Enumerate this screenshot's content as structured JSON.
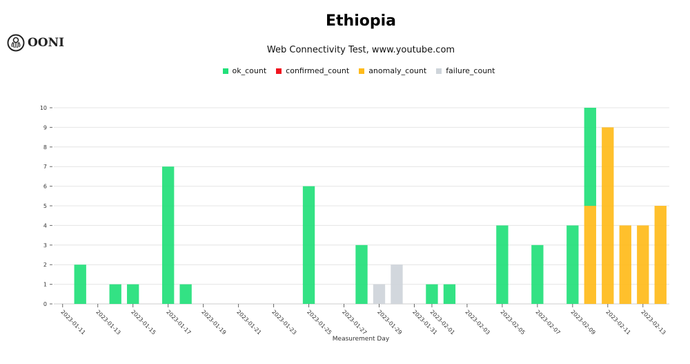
{
  "logo_text": "OONI",
  "chart_data": {
    "type": "bar",
    "stacked": true,
    "title": "Ethiopia",
    "subtitle": "Web Connectivity Test, www.youtube.com",
    "xlabel": "Measurement Day",
    "ylabel": "",
    "ylim": [
      0,
      10
    ],
    "yticks": [
      0,
      1,
      2,
      3,
      4,
      5,
      6,
      7,
      8,
      9,
      10
    ],
    "grid": true,
    "legend_placement": "top",
    "x_range": [
      "2023-01-11",
      "2023-02-14"
    ],
    "xticks": [
      "2023-01-11",
      "2023-01-13",
      "2023-01-15",
      "2023-01-17",
      "2023-01-19",
      "2023-01-21",
      "2023-01-23",
      "2023-01-25",
      "2023-01-27",
      "2023-01-29",
      "2023-01-31",
      "2023-02-01",
      "2023-02-03",
      "2023-02-05",
      "2023-02-07",
      "2023-02-09",
      "2023-02-11",
      "2023-02-13"
    ],
    "series": [
      {
        "name": "ok_count",
        "color": "#22e07a",
        "points": [
          [
            "2023-01-12",
            2
          ],
          [
            "2023-01-14",
            1
          ],
          [
            "2023-01-15",
            1
          ],
          [
            "2023-01-17",
            7
          ],
          [
            "2023-01-18",
            1
          ],
          [
            "2023-01-25",
            6
          ],
          [
            "2023-01-28",
            3
          ],
          [
            "2023-02-01",
            1
          ],
          [
            "2023-02-02",
            1
          ],
          [
            "2023-02-05",
            4
          ],
          [
            "2023-02-07",
            3
          ],
          [
            "2023-02-09",
            4
          ],
          [
            "2023-02-10",
            5
          ]
        ]
      },
      {
        "name": "confirmed_count",
        "color": "#f0141e",
        "points": []
      },
      {
        "name": "anomaly_count",
        "color": "#ffbb1a",
        "points": [
          [
            "2023-02-10",
            5
          ],
          [
            "2023-02-11",
            9
          ],
          [
            "2023-02-12",
            4
          ],
          [
            "2023-02-13",
            4
          ],
          [
            "2023-02-14",
            5
          ]
        ]
      },
      {
        "name": "failure_count",
        "color": "#ced4da",
        "points": [
          [
            "2023-01-29",
            1
          ],
          [
            "2023-01-30",
            2
          ]
        ]
      }
    ]
  }
}
